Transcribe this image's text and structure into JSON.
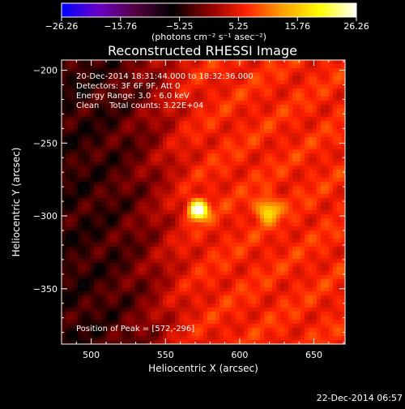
{
  "chart_data": {
    "type": "heatmap",
    "title": "Reconstructed RHESSI Image",
    "xlabel": "Heliocentric X (arcsec)",
    "ylabel": "Heliocentric Y (arcsec)",
    "xlim": [
      480,
      671
    ],
    "ylim": [
      -388,
      -193
    ],
    "xticks": [
      500,
      550,
      600,
      650
    ],
    "yticks": [
      -200,
      -250,
      -300,
      -350
    ],
    "xtick_labels": [
      "500",
      "550",
      "600",
      "650"
    ],
    "ytick_labels": [
      "−200",
      "−250",
      "−300",
      "−350"
    ],
    "colorbar": {
      "min": -26.26,
      "max": 26.26,
      "ticks": [
        -26.26,
        -15.76,
        -5.25,
        5.25,
        15.76,
        26.26
      ],
      "tick_labels": [
        "−26.26",
        "−15.76",
        "−5.25",
        "5.25",
        "15.76",
        "26.26"
      ],
      "units": "(photons cm⁻² s⁻¹ asec⁻²)",
      "colors": [
        "#0000ff",
        "#6a00c8",
        "#550040",
        "#000000",
        "#8c0000",
        "#ff2000",
        "#ffa000",
        "#ffff00",
        "#ffffff"
      ]
    },
    "sources": [
      {
        "x": 572,
        "y": -296,
        "peak": 26.26
      },
      {
        "x": 619,
        "y": -296,
        "peak": 12.0
      }
    ],
    "annotations": [
      "20-Dec-2014 18:31:44.000 to 18:32:36.000",
      "Detectors: 3F 6F 9F, Att 0",
      "Energy Range: 3.0 - 6.0 keV",
      "Clean    Total counts: 3.22E+04",
      "Position of Peak = [572,-296]"
    ],
    "timestamp": "22-Dec-2014 06:57"
  }
}
